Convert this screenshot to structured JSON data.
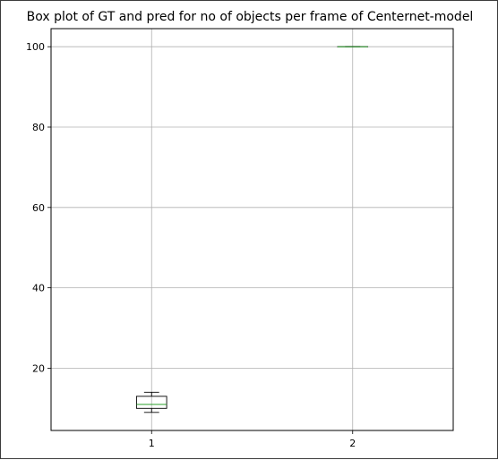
{
  "chart_data": {
    "type": "box",
    "title": "Box plot of GT and pred for no of objects per frame of Centernet-model",
    "xlabel": "",
    "ylabel": "",
    "categories": [
      "1",
      "2"
    ],
    "boxes": [
      {
        "category": "1",
        "whisker_low": 9,
        "q1": 10,
        "median": 11,
        "q3": 13,
        "whisker_high": 14
      },
      {
        "category": "2",
        "whisker_low": 100,
        "q1": 100,
        "median": 100,
        "q3": 100,
        "whisker_high": 100
      }
    ],
    "ylim": [
      4.5,
      104.5
    ],
    "yticks": [
      20,
      40,
      60,
      80,
      100
    ],
    "ytick_labels": [
      "20",
      "40",
      "60",
      "80",
      "100"
    ],
    "grid": true,
    "colors": {
      "box": "#000000",
      "median": "#2ca02c",
      "grid": "#b0b0b0"
    }
  }
}
